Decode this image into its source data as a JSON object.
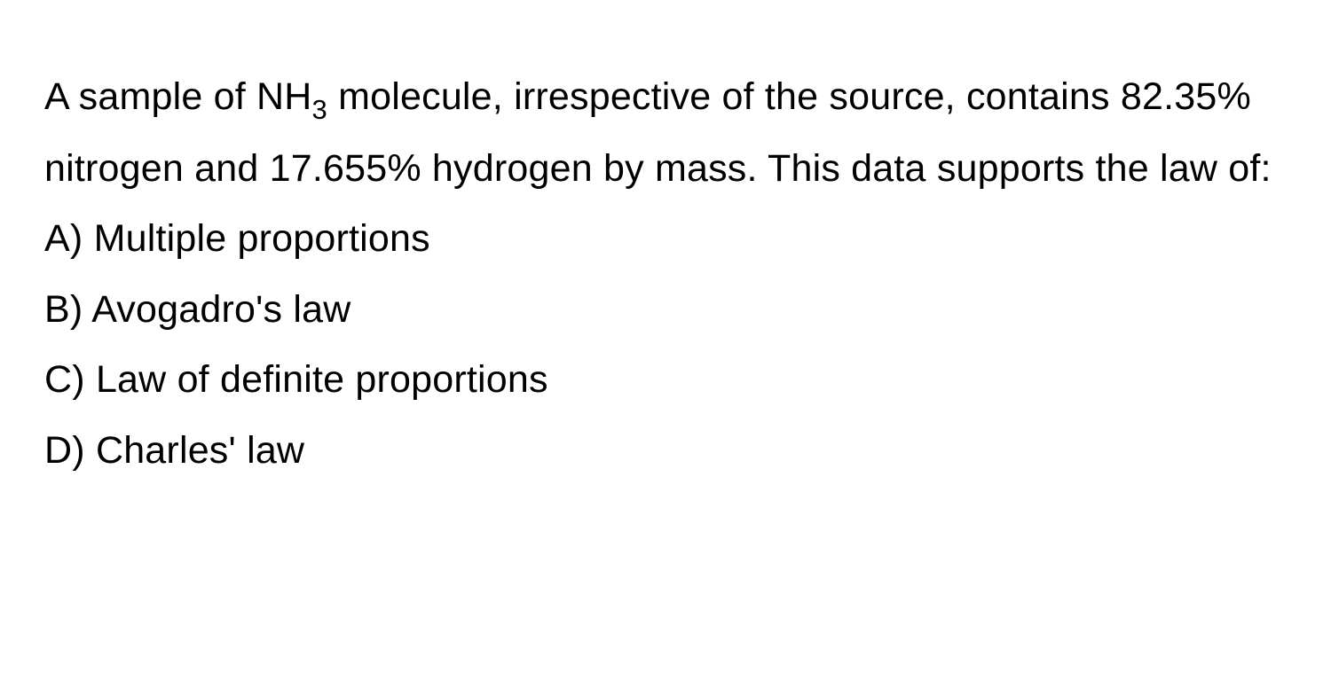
{
  "question": {
    "part1": "A sample of NH",
    "subscript": "3",
    "part2": " molecule, irrespective of the source, contains 82.35% nitrogen and 17.655% hydrogen by mass. This data supports the law of:"
  },
  "options": [
    {
      "label": "A)",
      "text": "Multiple proportions"
    },
    {
      "label": "B)",
      "text": "Avogadro's law"
    },
    {
      "label": "C)",
      "text": "Law of definite proportions"
    },
    {
      "label": "D)",
      "text": "Charles' law"
    }
  ],
  "style": {
    "background_color": "#ffffff",
    "text_color": "#000000",
    "font_size_pt": 32,
    "font_family": "-apple-system, sans-serif",
    "font_weight": 400,
    "line_height": 1.85
  }
}
